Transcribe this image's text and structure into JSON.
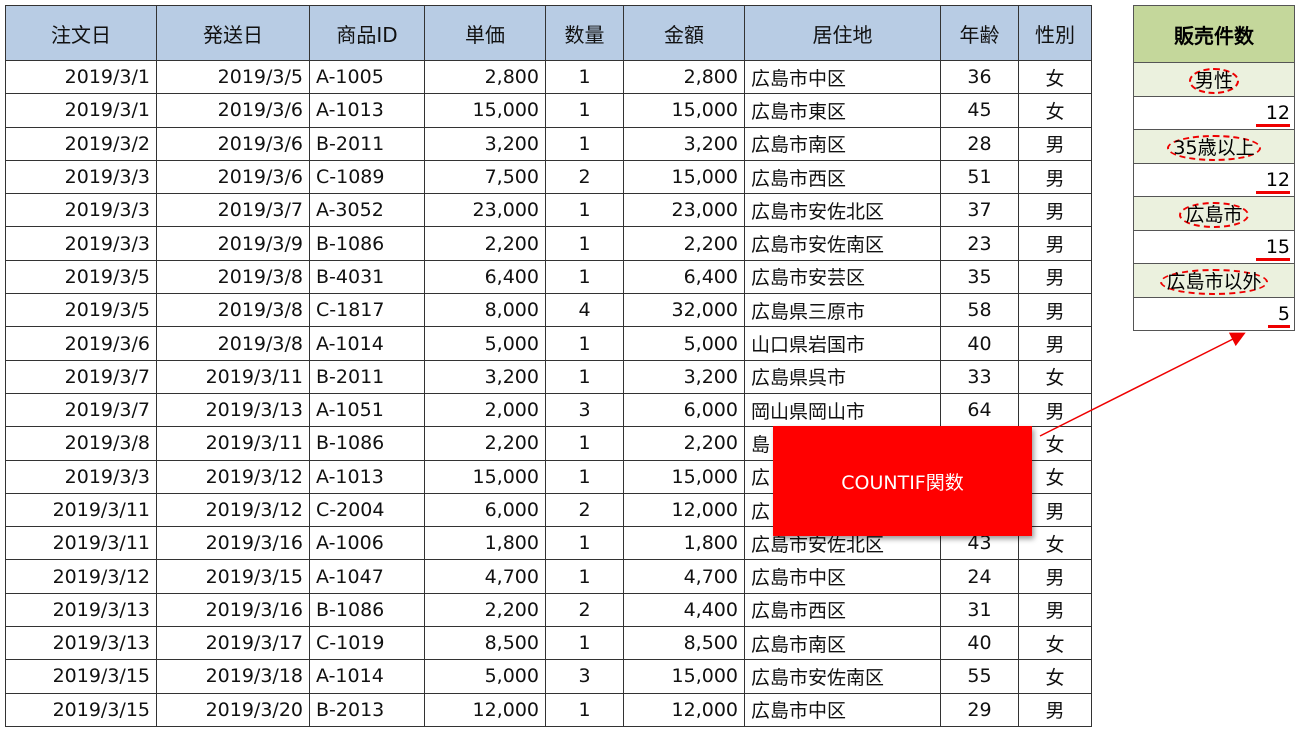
{
  "table": {
    "headers": [
      "注文日",
      "発送日",
      "商品ID",
      "単価",
      "数量",
      "金額",
      "居住地",
      "年齢",
      "性別"
    ],
    "rows": [
      [
        "2019/3/1",
        "2019/3/5",
        "A-1005",
        "2,800",
        "1",
        "2,800",
        "広島市中区",
        "36",
        "女"
      ],
      [
        "2019/3/1",
        "2019/3/6",
        "A-1013",
        "15,000",
        "1",
        "15,000",
        "広島市東区",
        "45",
        "女"
      ],
      [
        "2019/3/2",
        "2019/3/6",
        "B-2011",
        "3,200",
        "1",
        "3,200",
        "広島市南区",
        "28",
        "男"
      ],
      [
        "2019/3/3",
        "2019/3/6",
        "C-1089",
        "7,500",
        "2",
        "15,000",
        "広島市西区",
        "51",
        "男"
      ],
      [
        "2019/3/3",
        "2019/3/7",
        "A-3052",
        "23,000",
        "1",
        "23,000",
        "広島市安佐北区",
        "37",
        "男"
      ],
      [
        "2019/3/3",
        "2019/3/9",
        "B-1086",
        "2,200",
        "1",
        "2,200",
        "広島市安佐南区",
        "23",
        "男"
      ],
      [
        "2019/3/5",
        "2019/3/8",
        "B-4031",
        "6,400",
        "1",
        "6,400",
        "広島市安芸区",
        "35",
        "男"
      ],
      [
        "2019/3/5",
        "2019/3/8",
        "C-1817",
        "8,000",
        "4",
        "32,000",
        "広島県三原市",
        "58",
        "男"
      ],
      [
        "2019/3/6",
        "2019/3/8",
        "A-1014",
        "5,000",
        "1",
        "5,000",
        "山口県岩国市",
        "40",
        "男"
      ],
      [
        "2019/3/7",
        "2019/3/11",
        "B-2011",
        "3,200",
        "1",
        "3,200",
        "広島県呉市",
        "33",
        "女"
      ],
      [
        "2019/3/7",
        "2019/3/13",
        "A-1051",
        "2,000",
        "3",
        "6,000",
        "岡山県岡山市",
        "64",
        "男"
      ],
      [
        "2019/3/8",
        "2019/3/11",
        "B-1086",
        "2,200",
        "1",
        "2,200",
        "島",
        "",
        "女"
      ],
      [
        "2019/3/3",
        "2019/3/12",
        "A-1013",
        "15,000",
        "1",
        "15,000",
        "広",
        "",
        "女"
      ],
      [
        "2019/3/11",
        "2019/3/12",
        "C-2004",
        "6,000",
        "2",
        "12,000",
        "広",
        "",
        "男"
      ],
      [
        "2019/3/11",
        "2019/3/16",
        "A-1006",
        "1,800",
        "1",
        "1,800",
        "広島市安佐北区",
        "43",
        "女"
      ],
      [
        "2019/3/12",
        "2019/3/15",
        "A-1047",
        "4,700",
        "1",
        "4,700",
        "広島市中区",
        "24",
        "男"
      ],
      [
        "2019/3/13",
        "2019/3/16",
        "B-1086",
        "2,200",
        "2",
        "4,400",
        "広島市西区",
        "31",
        "男"
      ],
      [
        "2019/3/13",
        "2019/3/17",
        "C-1019",
        "8,500",
        "1",
        "8,500",
        "広島市南区",
        "40",
        "女"
      ],
      [
        "2019/3/15",
        "2019/3/18",
        "A-1014",
        "5,000",
        "3",
        "15,000",
        "広島市安佐南区",
        "55",
        "女"
      ],
      [
        "2019/3/15",
        "2019/3/20",
        "B-2013",
        "12,000",
        "1",
        "12,000",
        "広島市中区",
        "29",
        "男"
      ]
    ]
  },
  "summary": {
    "title": "販売件数",
    "items": [
      {
        "label": "男性",
        "value": "12"
      },
      {
        "label": "35歳以上",
        "value": "12"
      },
      {
        "label": "広島市",
        "value": "15"
      },
      {
        "label": "広島市以外",
        "value": "5"
      }
    ]
  },
  "callout": {
    "text": "COUNTIF関数",
    "color": "#ff0000"
  }
}
